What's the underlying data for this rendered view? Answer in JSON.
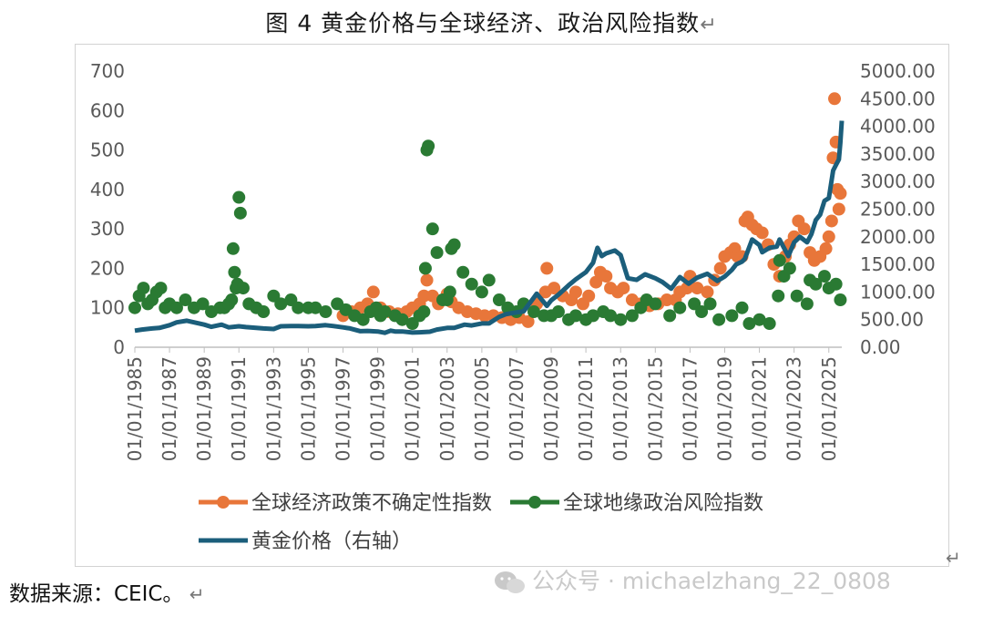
{
  "title": "图 4    黄金价格与全球经济、政治风险指数",
  "return_glyph": "↵",
  "source": "数据来源：CEIC。",
  "watermark": "公众号 · michaelzhang_22_0808",
  "chart_data": {
    "type": "line",
    "title": "图 4    黄金价格与全球经济、政治风险指数",
    "x_tick_labels": [
      "01/01/1985",
      "01/01/1987",
      "01/01/1989",
      "01/01/1991",
      "01/01/1993",
      "01/01/1995",
      "01/01/1997",
      "01/01/1999",
      "01/01/2001",
      "01/01/2003",
      "01/01/2005",
      "01/01/2007",
      "01/01/2009",
      "01/01/2011",
      "01/01/2013",
      "01/01/2015",
      "01/01/2017",
      "01/01/2019",
      "01/01/2021",
      "01/01/2023",
      "01/01/2025"
    ],
    "xlim": [
      "1985-01-01",
      "2025-10-01"
    ],
    "y_left": {
      "ylim": [
        0,
        700
      ],
      "ticks": [
        "0",
        "100",
        "200",
        "300",
        "400",
        "500",
        "600",
        "700"
      ]
    },
    "y_right": {
      "ylim": [
        0,
        5000
      ],
      "ticks": [
        "0.00",
        "500.00",
        "1000.00",
        "1500.00",
        "2000.00",
        "2500.00",
        "3000.00",
        "3500.00",
        "4000.00",
        "4500.00",
        "5000.00"
      ]
    },
    "grid": false,
    "legend_position": "bottom",
    "colors": {
      "epu": "#E8763A",
      "gpr": "#2A7A33",
      "gold": "#1B5E7B"
    },
    "series": [
      {
        "name": "全球经济政策不确定性指数",
        "axis": "left",
        "style": "markers",
        "x": [
          "1997-01-01",
          "1997-07-01",
          "1998-01-01",
          "1998-06-01",
          "1998-10-01",
          "1999-03-01",
          "1999-09-01",
          "2000-03-01",
          "2000-09-01",
          "2001-01-01",
          "2001-06-01",
          "2001-09-01",
          "2001-11-01",
          "2002-03-01",
          "2002-07-01",
          "2002-10-01",
          "2003-01-01",
          "2003-04-01",
          "2003-09-01",
          "2004-03-01",
          "2004-09-01",
          "2005-03-01",
          "2005-09-01",
          "2006-03-01",
          "2006-09-01",
          "2007-03-01",
          "2007-09-01",
          "2008-03-01",
          "2008-09-01",
          "2008-10-01",
          "2009-03-01",
          "2009-09-01",
          "2010-03-01",
          "2010-06-01",
          "2010-11-01",
          "2011-03-01",
          "2011-08-01",
          "2011-11-01",
          "2012-03-01",
          "2012-06-01",
          "2012-11-01",
          "2013-03-01",
          "2013-09-01",
          "2014-03-01",
          "2014-09-01",
          "2015-03-01",
          "2015-09-01",
          "2016-03-01",
          "2016-06-01",
          "2016-11-01",
          "2017-01-01",
          "2017-06-01",
          "2018-01-01",
          "2018-06-01",
          "2018-10-01",
          "2019-01-01",
          "2019-05-01",
          "2019-08-01",
          "2019-10-01",
          "2020-01-01",
          "2020-03-01",
          "2020-05-01",
          "2020-08-01",
          "2020-11-01",
          "2021-03-01",
          "2021-07-01",
          "2021-11-01",
          "2022-03-01",
          "2022-07-01",
          "2022-10-01",
          "2023-01-01",
          "2023-04-01",
          "2023-08-01",
          "2023-12-01",
          "2024-03-01",
          "2024-07-01",
          "2024-11-01",
          "2025-01-01",
          "2025-03-01",
          "2025-04-01",
          "2025-05-01",
          "2025-06-01",
          "2025-07-01",
          "2025-08-01",
          "2025-09-01"
        ],
        "y": [
          80,
          90,
          100,
          110,
          140,
          100,
          90,
          85,
          90,
          100,
          110,
          130,
          170,
          130,
          110,
          120,
          135,
          115,
          100,
          90,
          85,
          80,
          80,
          75,
          70,
          75,
          65,
          110,
          140,
          200,
          150,
          130,
          120,
          140,
          110,
          130,
          165,
          190,
          180,
          150,
          140,
          150,
          120,
          110,
          105,
          110,
          120,
          120,
          140,
          150,
          180,
          150,
          140,
          170,
          200,
          230,
          240,
          250,
          230,
          230,
          320,
          330,
          310,
          300,
          290,
          260,
          210,
          180,
          230,
          260,
          280,
          320,
          300,
          240,
          220,
          230,
          250,
          280,
          320,
          480,
          630,
          520,
          400,
          350,
          390
        ]
      },
      {
        "name": "全球地缘政治风险指数",
        "axis": "left",
        "style": "markers",
        "x": [
          "1985-01-01",
          "1985-04-01",
          "1985-07-01",
          "1985-10-01",
          "1986-01-01",
          "1986-04-01",
          "1986-07-01",
          "1986-10-01",
          "1987-01-01",
          "1987-06-01",
          "1987-12-01",
          "1988-06-01",
          "1988-12-01",
          "1989-06-01",
          "1989-12-01",
          "1990-03-01",
          "1990-06-01",
          "1990-08-01",
          "1990-09-01",
          "1990-10-01",
          "1990-11-01",
          "1990-12-01",
          "1991-01-01",
          "1991-02-01",
          "1991-04-01",
          "1991-08-01",
          "1992-01-01",
          "1992-06-01",
          "1993-01-01",
          "1993-06-01",
          "1994-01-01",
          "1994-06-01",
          "1995-01-01",
          "1995-06-01",
          "1996-01-01",
          "1996-09-01",
          "1997-03-01",
          "1997-09-01",
          "1998-03-01",
          "1998-08-01",
          "1998-12-01",
          "1999-03-01",
          "1999-06-01",
          "2000-01-01",
          "2000-06-01",
          "2001-01-01",
          "2001-06-01",
          "2001-09-01",
          "2001-10-01",
          "2001-11-01",
          "2001-12-01",
          "2002-03-01",
          "2002-06-01",
          "2002-10-01",
          "2003-01-01",
          "2003-03-01",
          "2003-04-01",
          "2003-06-01",
          "2003-12-01",
          "2004-06-01",
          "2005-01-01",
          "2005-06-01",
          "2006-01-01",
          "2006-07-01",
          "2007-01-01",
          "2007-06-01",
          "2008-01-01",
          "2008-08-01",
          "2009-01-01",
          "2009-06-01",
          "2010-01-01",
          "2010-06-01",
          "2011-01-01",
          "2011-06-01",
          "2012-01-01",
          "2012-06-01",
          "2013-01-01",
          "2013-09-01",
          "2014-03-01",
          "2014-07-01",
          "2015-01-01",
          "2015-11-01",
          "2016-06-01",
          "2017-04-01",
          "2017-09-01",
          "2018-03-01",
          "2018-09-01",
          "2019-06-01",
          "2020-01-01",
          "2020-06-01",
          "2021-01-01",
          "2021-08-01",
          "2022-02-01",
          "2022-03-01",
          "2022-06-01",
          "2022-10-01",
          "2023-03-01",
          "2023-10-01",
          "2023-12-01",
          "2024-04-01",
          "2024-10-01",
          "2025-01-01",
          "2025-06-01",
          "2025-09-01"
        ],
        "y": [
          100,
          130,
          150,
          110,
          120,
          140,
          150,
          100,
          110,
          100,
          120,
          100,
          110,
          90,
          100,
          100,
          110,
          120,
          250,
          190,
          150,
          160,
          380,
          340,
          150,
          110,
          100,
          90,
          130,
          110,
          120,
          100,
          100,
          100,
          90,
          110,
          95,
          80,
          70,
          90,
          100,
          80,
          90,
          80,
          70,
          60,
          80,
          90,
          200,
          500,
          510,
          300,
          240,
          120,
          120,
          140,
          250,
          260,
          190,
          160,
          140,
          170,
          120,
          100,
          90,
          110,
          90,
          80,
          80,
          90,
          70,
          80,
          70,
          80,
          90,
          80,
          70,
          80,
          100,
          120,
          110,
          80,
          100,
          110,
          90,
          110,
          70,
          80,
          100,
          60,
          70,
          60,
          130,
          220,
          180,
          200,
          130,
          110,
          170,
          160,
          180,
          150,
          160,
          120
        ]
      },
      {
        "name": "黄金价格（右轴）",
        "axis": "right",
        "style": "line",
        "x": [
          "1985-01-01",
          "1985-06-01",
          "1986-01-01",
          "1986-06-01",
          "1987-01-01",
          "1987-06-01",
          "1988-01-01",
          "1988-06-01",
          "1989-01-01",
          "1989-06-01",
          "1990-01-01",
          "1990-06-01",
          "1991-01-01",
          "1991-06-01",
          "1992-01-01",
          "1992-06-01",
          "1993-01-01",
          "1993-06-01",
          "1994-01-01",
          "1994-06-01",
          "1995-01-01",
          "1995-06-01",
          "1996-01-01",
          "1996-06-01",
          "1997-01-01",
          "1997-06-01",
          "1998-01-01",
          "1998-06-01",
          "1999-01-01",
          "1999-06-01",
          "1999-10-01",
          "2000-01-01",
          "2000-06-01",
          "2001-01-01",
          "2001-06-01",
          "2002-01-01",
          "2002-06-01",
          "2003-01-01",
          "2003-06-01",
          "2004-01-01",
          "2004-06-01",
          "2005-01-01",
          "2005-06-01",
          "2006-01-01",
          "2006-06-01",
          "2007-01-01",
          "2007-06-01",
          "2008-01-01",
          "2008-03-01",
          "2008-10-01",
          "2009-01-01",
          "2009-06-01",
          "2010-01-01",
          "2010-06-01",
          "2011-01-01",
          "2011-06-01",
          "2011-09-01",
          "2011-12-01",
          "2012-03-01",
          "2012-09-01",
          "2013-01-01",
          "2013-06-01",
          "2013-12-01",
          "2014-06-01",
          "2015-01-01",
          "2015-06-01",
          "2015-12-01",
          "2016-06-01",
          "2016-12-01",
          "2017-06-01",
          "2018-01-01",
          "2018-08-01",
          "2019-01-01",
          "2019-06-01",
          "2019-09-01",
          "2020-01-01",
          "2020-03-01",
          "2020-08-01",
          "2021-01-01",
          "2021-03-01",
          "2021-08-01",
          "2022-01-01",
          "2022-03-01",
          "2022-09-01",
          "2023-01-01",
          "2023-05-01",
          "2023-10-01",
          "2024-01-01",
          "2024-04-01",
          "2024-07-01",
          "2024-10-01",
          "2025-01-01",
          "2025-04-01",
          "2025-06-01",
          "2025-08-01",
          "2025-09-01",
          "2025-10-01"
        ],
        "y": [
          300,
          320,
          340,
          350,
          400,
          450,
          480,
          450,
          410,
          370,
          410,
          360,
          380,
          365,
          350,
          340,
          330,
          380,
          385,
          385,
          380,
          385,
          400,
          385,
          360,
          340,
          290,
          295,
          285,
          260,
          300,
          285,
          285,
          265,
          270,
          280,
          320,
          350,
          350,
          410,
          395,
          430,
          430,
          550,
          600,
          630,
          650,
          900,
          970,
          750,
          850,
          950,
          1120,
          1230,
          1360,
          1530,
          1800,
          1650,
          1700,
          1750,
          1670,
          1250,
          1220,
          1320,
          1250,
          1180,
          1060,
          1270,
          1150,
          1260,
          1330,
          1200,
          1280,
          1400,
          1500,
          1550,
          1600,
          1950,
          1850,
          1720,
          1800,
          1820,
          1950,
          1650,
          1900,
          2000,
          1900,
          2050,
          2300,
          2400,
          2650,
          2700,
          3200,
          3300,
          3400,
          3700,
          4100
        ]
      }
    ]
  }
}
